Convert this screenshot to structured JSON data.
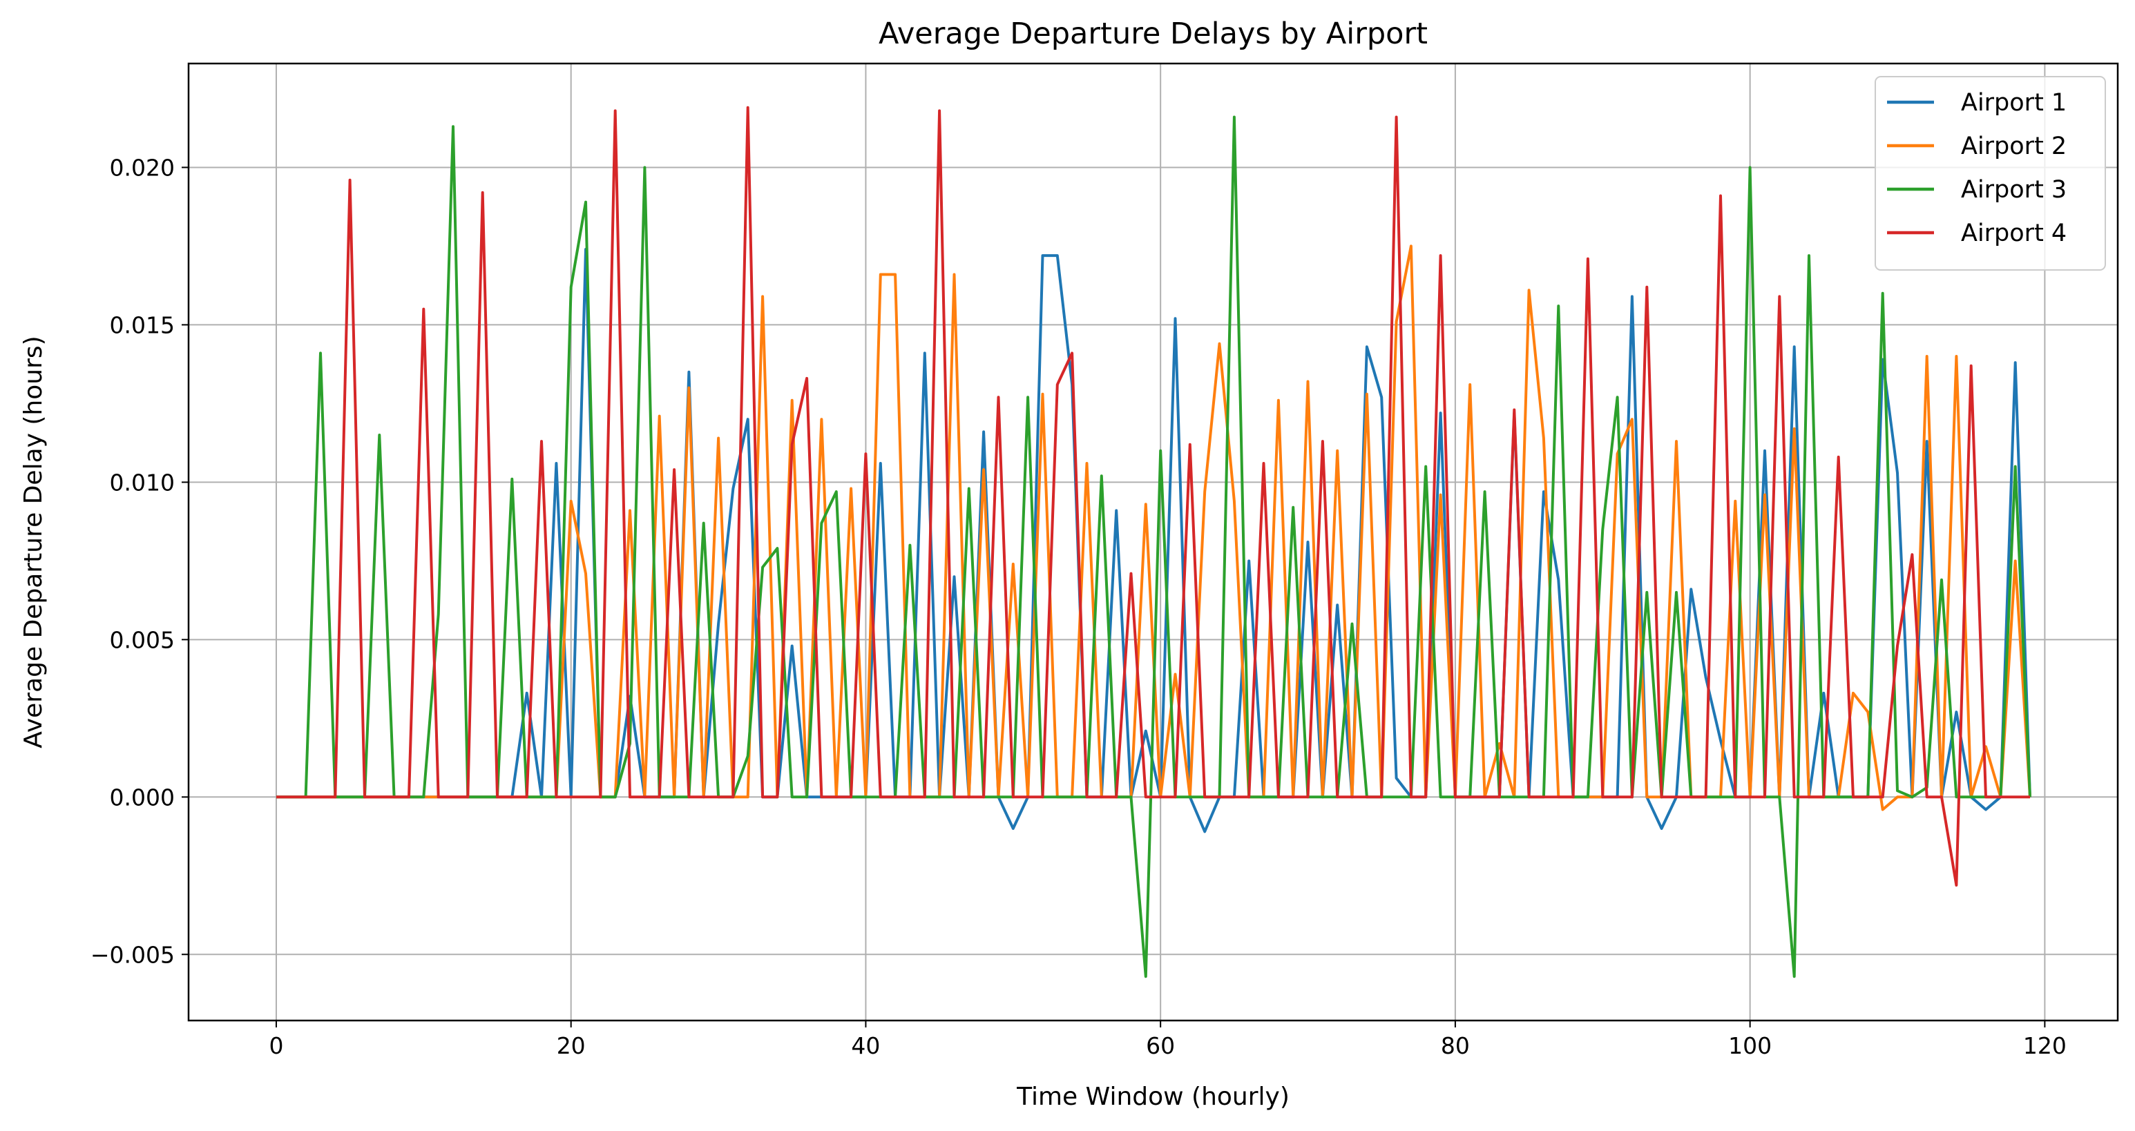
{
  "chart_data": {
    "type": "line",
    "title": "Average Departure Delays by Airport",
    "xlabel": "Time Window (hourly)",
    "ylabel": "Average Departure Delay (hours)",
    "xlim": [
      -5.95,
      124.95
    ],
    "ylim": [
      -0.0071,
      0.0233
    ],
    "xticks": [
      0,
      20,
      40,
      60,
      80,
      100,
      120
    ],
    "xtick_labels": [
      "0",
      "20",
      "40",
      "60",
      "80",
      "100",
      "120"
    ],
    "yticks": [
      -0.005,
      0.0,
      0.005,
      0.01,
      0.015,
      0.02
    ],
    "ytick_labels": [
      "−0.005",
      "0.000",
      "0.005",
      "0.010",
      "0.015",
      "0.020"
    ],
    "grid": true,
    "legend_position": "top-right",
    "x": [
      0,
      1,
      2,
      3,
      4,
      5,
      6,
      7,
      8,
      9,
      10,
      11,
      12,
      13,
      14,
      15,
      16,
      17,
      18,
      19,
      20,
      21,
      22,
      23,
      24,
      25,
      26,
      27,
      28,
      29,
      30,
      31,
      32,
      33,
      34,
      35,
      36,
      37,
      38,
      39,
      40,
      41,
      42,
      43,
      44,
      45,
      46,
      47,
      48,
      49,
      50,
      51,
      52,
      53,
      54,
      55,
      56,
      57,
      58,
      59,
      60,
      61,
      62,
      63,
      64,
      65,
      66,
      67,
      68,
      69,
      70,
      71,
      72,
      73,
      74,
      75,
      76,
      77,
      78,
      79,
      80,
      81,
      82,
      83,
      84,
      85,
      86,
      87,
      88,
      89,
      90,
      91,
      92,
      93,
      94,
      95,
      96,
      97,
      98,
      99,
      100,
      101,
      102,
      103,
      104,
      105,
      106,
      107,
      108,
      109,
      110,
      111,
      112,
      113,
      114,
      115,
      116,
      117,
      118,
      119
    ],
    "series": [
      {
        "name": "Airport 1",
        "color": "#1f77b4",
        "values": [
          0,
          0,
          0,
          0,
          0,
          0,
          0,
          0,
          0,
          0,
          0,
          0,
          0,
          0,
          0,
          0,
          0,
          0.0033,
          0,
          0.0106,
          0,
          0.0174,
          0,
          0,
          0.0032,
          0,
          0,
          0,
          0.0135,
          0,
          0.0055,
          0.0098,
          0.012,
          0,
          0,
          0.0048,
          0,
          0,
          0,
          0,
          0,
          0.0106,
          0,
          0,
          0.0141,
          0,
          0.007,
          0,
          0.0116,
          0,
          -0.001,
          0,
          0.0172,
          0.0172,
          0.0131,
          0,
          0,
          0.0091,
          0,
          0.0021,
          0,
          0.0152,
          0,
          -0.0011,
          0,
          0,
          0.0075,
          0,
          0,
          0,
          0.0081,
          0,
          0.0061,
          0,
          0.0143,
          0.0127,
          0.0006,
          0,
          0,
          0.0122,
          0,
          0,
          0,
          0,
          0.0122,
          0,
          0.0097,
          0.0069,
          0,
          0,
          0,
          0,
          0.0159,
          0,
          -0.001,
          0,
          0.0066,
          0.0038,
          0.0018,
          0,
          0,
          0.011,
          0,
          0.0143,
          0,
          0.0033,
          0,
          0,
          0,
          0.0139,
          0.0103,
          0,
          0.0113,
          0,
          0.0027,
          0,
          -0.0004,
          0,
          0.0138,
          0
        ]
      },
      {
        "name": "Airport 2",
        "color": "#ff7f0e",
        "values": [
          0,
          0,
          0,
          0,
          0,
          0,
          0,
          0,
          0,
          0,
          0,
          0,
          0,
          0,
          0,
          0,
          0,
          0,
          0,
          0,
          0.0094,
          0.0071,
          0,
          0,
          0.0091,
          0,
          0.0121,
          0,
          0.013,
          0,
          0.0114,
          0,
          0,
          0.0159,
          0,
          0.0126,
          0,
          0.012,
          0,
          0.0098,
          0,
          0.0166,
          0.0166,
          0,
          0,
          0,
          0.0166,
          0,
          0.0104,
          0,
          0.0074,
          0,
          0.0128,
          0,
          0,
          0.0106,
          0,
          0,
          0,
          0.0093,
          0,
          0.0039,
          0,
          0.0097,
          0.0144,
          0.0094,
          0,
          0,
          0.0126,
          0,
          0.0132,
          0,
          0.011,
          0,
          0.0128,
          0,
          0.0151,
          0.0175,
          0,
          0.0096,
          0,
          0.0131,
          0,
          0.0017,
          0,
          0.0161,
          0.0114,
          0,
          0,
          0,
          0,
          0.0109,
          0.012,
          0,
          0,
          0.0113,
          0,
          0,
          0,
          0.0094,
          0,
          0.0096,
          0,
          0.0117,
          0,
          0,
          0,
          0.0033,
          0.0027,
          -0.0004,
          0,
          0,
          0.014,
          0,
          0.014,
          0,
          0.0016,
          0,
          0.0075,
          0
        ]
      },
      {
        "name": "Airport 3",
        "color": "#2ca02c",
        "values": [
          0,
          0,
          0,
          0.0141,
          0,
          0,
          0,
          0.0115,
          0,
          0,
          0,
          0.0058,
          0.0213,
          0,
          0,
          0,
          0.0101,
          0,
          0,
          0,
          0.0162,
          0.0189,
          0,
          0,
          0.0017,
          0.02,
          0,
          0,
          0,
          0.0087,
          0,
          0,
          0.0013,
          0.0073,
          0.0079,
          0,
          0,
          0.0087,
          0.0097,
          0,
          0,
          0,
          0,
          0.008,
          0,
          0,
          0,
          0.0098,
          0,
          0,
          0,
          0.0127,
          0,
          0,
          0,
          0,
          0.0102,
          0,
          0,
          -0.0057,
          0.011,
          0,
          0,
          0,
          0,
          0.0216,
          0,
          0,
          0,
          0.0092,
          0,
          0,
          0,
          0.0055,
          0,
          0,
          0,
          0,
          0.0105,
          0,
          0,
          0,
          0.0097,
          0,
          0,
          0,
          0,
          0.0156,
          0,
          0,
          0.0085,
          0.0127,
          0,
          0.0065,
          0,
          0.0065,
          0,
          0,
          0,
          0,
          0.02,
          0,
          0,
          -0.0057,
          0.0172,
          0,
          0,
          0,
          0,
          0.016,
          0.0002,
          0,
          0.0003,
          0.0069,
          0,
          0,
          0,
          0,
          0.0105,
          0
        ]
      },
      {
        "name": "Airport 4",
        "color": "#d62728",
        "values": [
          0,
          0,
          0,
          0,
          0,
          0.0196,
          0,
          0,
          0,
          0,
          0.0155,
          0,
          0,
          0,
          0.0192,
          0,
          0,
          0,
          0.0113,
          0,
          0,
          0,
          0,
          0.0218,
          0,
          0,
          0,
          0.0104,
          0,
          0,
          0,
          0,
          0.0219,
          0,
          0,
          0.0112,
          0.0133,
          0,
          0,
          0,
          0.0109,
          0,
          0,
          0,
          0,
          0.0218,
          0,
          0,
          0,
          0.0127,
          0,
          0,
          0,
          0.0131,
          0.0141,
          0,
          0,
          0,
          0.0071,
          0,
          0,
          0,
          0.0112,
          0,
          0,
          0,
          0,
          0.0106,
          0,
          0,
          0,
          0.0113,
          0,
          0,
          0,
          0,
          0.0216,
          0,
          0,
          0.0172,
          0,
          0,
          0,
          0,
          0.0123,
          0,
          0,
          0,
          0,
          0.0171,
          0,
          0,
          0,
          0.0162,
          0,
          0,
          0,
          0,
          0.0191,
          0,
          0,
          0,
          0.0159,
          0,
          0,
          0,
          0.0108,
          0,
          0,
          0,
          0.0048,
          0.0077,
          0,
          0,
          -0.0028,
          0.0137,
          0,
          0,
          0,
          0
        ]
      }
    ]
  }
}
